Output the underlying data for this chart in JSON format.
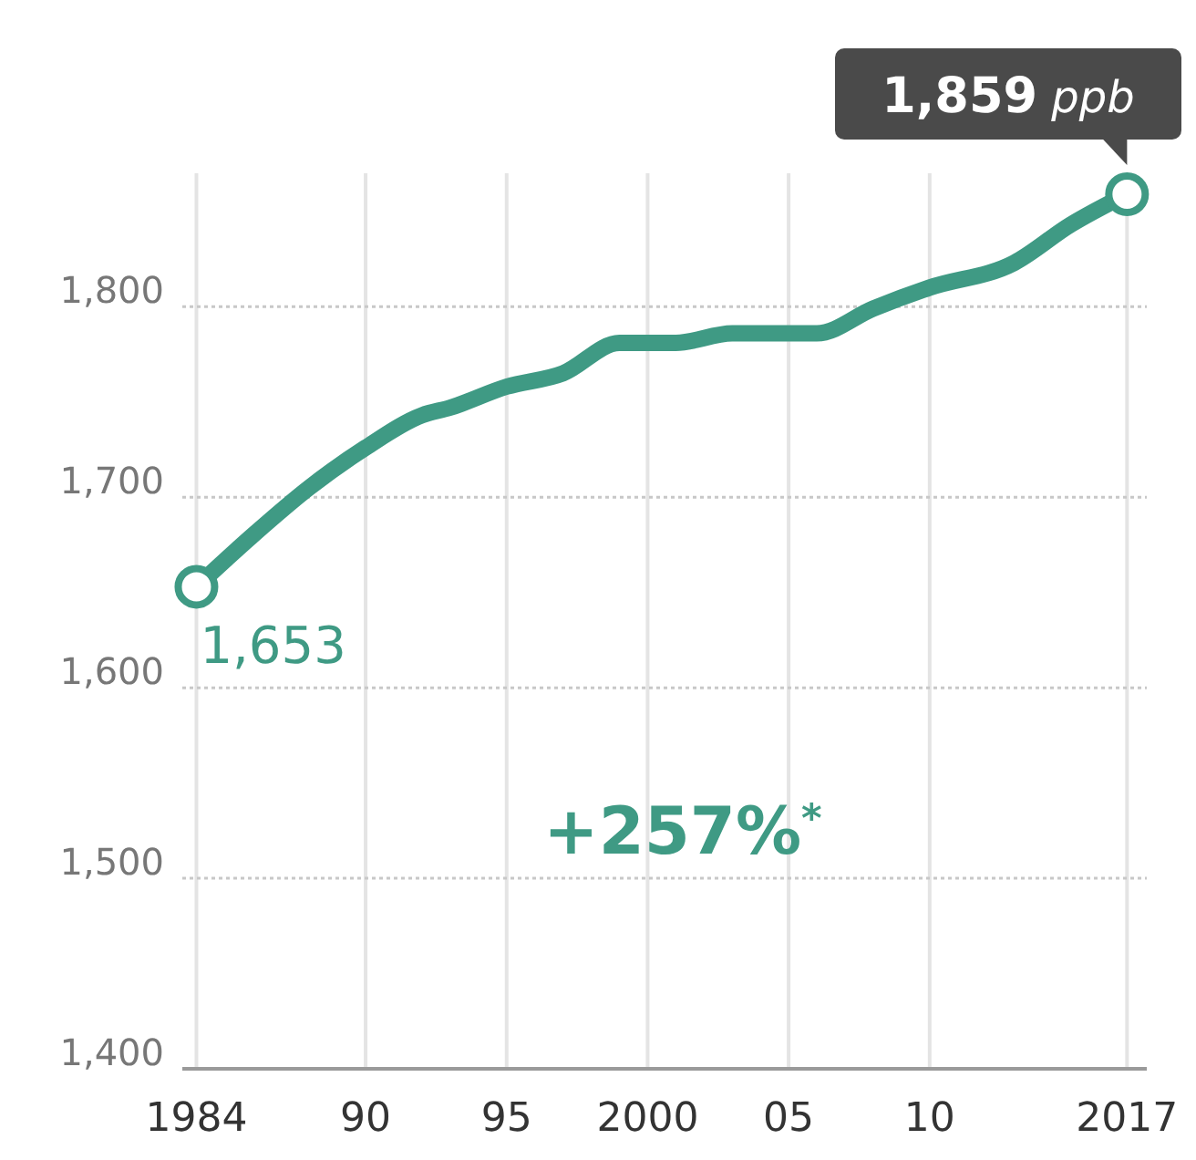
{
  "chart_data": {
    "type": "line",
    "x": [
      1984,
      1986,
      1988,
      1990,
      1992,
      1993,
      1995,
      1997,
      1999,
      2001,
      2003,
      2006,
      2008,
      2010,
      2013,
      2015,
      2017
    ],
    "series": [
      {
        "color": "#3f9a84",
        "values": [
          1653,
          1680,
          1705,
          1726,
          1743,
          1747,
          1758,
          1765,
          1781,
          1781,
          1786,
          1786,
          1799,
          1810,
          1823,
          1843,
          1859
        ]
      }
    ],
    "xlim": [
      1983.5,
      2017.7
    ],
    "xticks": [
      1984,
      {
        "value": 1990,
        "label": "90"
      },
      {
        "value": 1995,
        "label": "95"
      },
      2000,
      {
        "value": 2005,
        "label": "05"
      },
      {
        "value": 2010,
        "label": "10"
      },
      2017
    ],
    "ylim": [
      1400,
      1870
    ],
    "yticks": [
      {
        "value": 1400,
        "label": "1,400"
      },
      {
        "value": 1500,
        "label": "1,500"
      },
      {
        "value": 1600,
        "label": "1,600"
      },
      {
        "value": 1700,
        "label": "1,700"
      },
      {
        "value": 1800,
        "label": "1,800"
      }
    ],
    "grid": true,
    "marker": "none",
    "line_style": "solid",
    "annotations": [
      {
        "text": "1,653",
        "x": 1984,
        "y": 1653
      },
      {
        "text": "1,859 ppb",
        "x": 2017,
        "y": 1859
      },
      "+257%$^{*}$"
    ]
  }
}
